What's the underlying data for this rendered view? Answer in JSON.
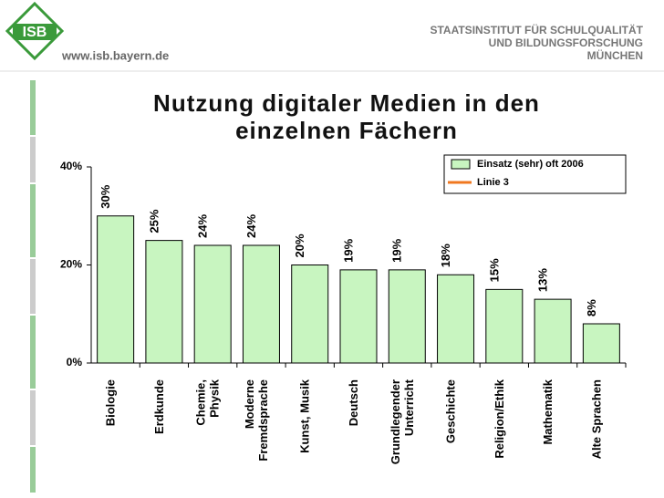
{
  "header": {
    "logo": "ISB",
    "url": "www.isb.bayern.de",
    "institute": [
      "STAATSINSTITUT FÜR SCHULQUALITÄT",
      "UND BILDUNGSFORSCHUNG",
      "MÜNCHEN"
    ]
  },
  "chart_data": {
    "type": "bar",
    "title": "Nutzung digitaler Medien in den\neinzelnen Fächern",
    "categories": [
      "Biologie",
      "Erdkunde",
      "Chemie,\nPhysik",
      "Moderne\nFremdsprache",
      "Kunst, Musik",
      "Deutsch",
      "Grundlegender\nUnterricht",
      "Geschichte",
      "Religion/Ethik",
      "Mathematik",
      "Alte Sprachen"
    ],
    "series": [
      {
        "name": "Einsatz (sehr) oft 2006",
        "color": "#c8f5c0",
        "values": [
          30,
          25,
          24,
          24,
          20,
          19,
          19,
          18,
          15,
          13,
          8
        ],
        "value_labels": [
          "30%",
          "25%",
          "24%",
          "24%",
          "20%",
          "19%",
          "19%",
          "18%",
          "15%",
          "13%",
          "8%"
        ]
      },
      {
        "name": "Linie 3",
        "color": "#f07820",
        "values": [
          null,
          null,
          null,
          null,
          null,
          null,
          null,
          null,
          null,
          null,
          null
        ]
      }
    ],
    "ylim": [
      0,
      40
    ],
    "yticks": [
      {
        "value": 0,
        "label": "0%"
      },
      {
        "value": 20,
        "label": "20%"
      },
      {
        "value": 40,
        "label": "40%"
      }
    ],
    "legend": "upper right"
  }
}
